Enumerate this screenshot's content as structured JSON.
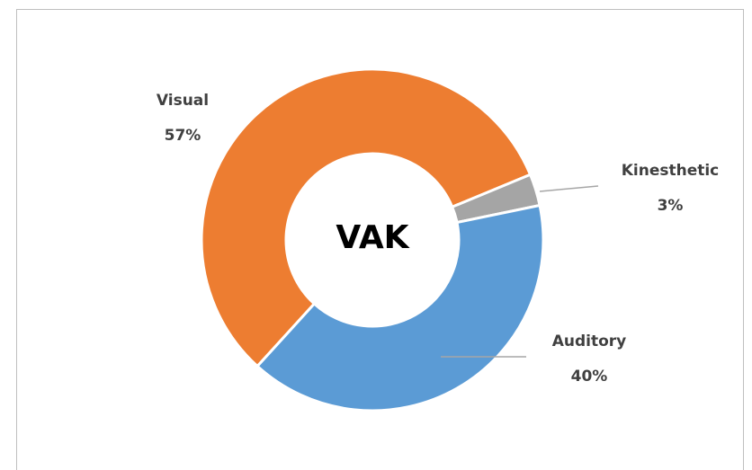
{
  "chart_data": {
    "type": "donut",
    "title": "VAK",
    "categories": [
      "Visual",
      "Kinesthetic",
      "Auditory"
    ],
    "values": [
      57,
      3,
      40
    ],
    "value_labels": [
      "57%",
      "3%",
      "40%"
    ],
    "colors": [
      "#ED7D31",
      "#A5A5A5",
      "#5B9BD5"
    ]
  }
}
